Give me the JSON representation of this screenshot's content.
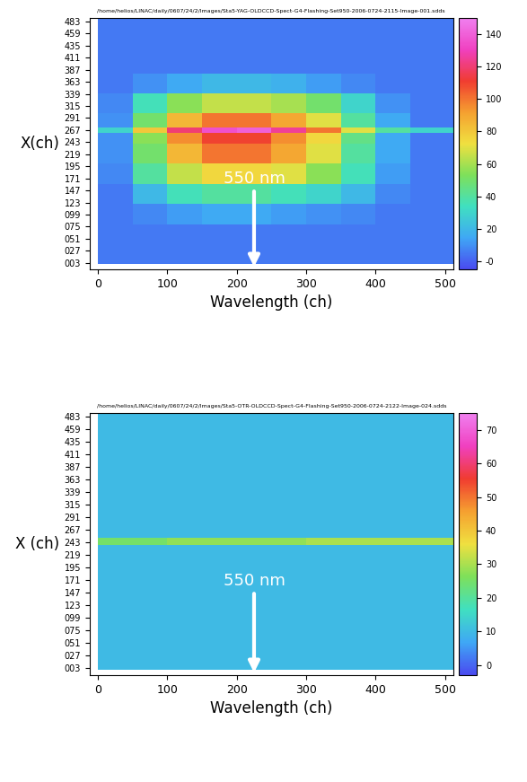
{
  "chart_data": [
    {
      "type": "heatmap",
      "title": "/home/helios/LINAC/daily/0607/24/2/Images/Sta5-YAG-OLDCCD-Spect-G4-Flashing-Set950-2006-0724-2115-Image-001.sdds",
      "x_label": "Wavelength (ch)",
      "y_label": "X(ch)",
      "x_edges": [
        0,
        50,
        100,
        150,
        200,
        250,
        300,
        350,
        400,
        450,
        512
      ],
      "y_edges": [
        0,
        40,
        80,
        120,
        160,
        200,
        240,
        262,
        272,
        300,
        340,
        380,
        490
      ],
      "cells": [
        [
          5,
          5,
          5,
          5,
          5,
          5,
          5,
          5,
          5,
          5
        ],
        [
          5,
          5,
          5,
          5,
          5,
          5,
          5,
          5,
          5,
          5
        ],
        [
          5,
          8,
          12,
          15,
          15,
          12,
          10,
          8,
          5,
          5
        ],
        [
          5,
          20,
          35,
          40,
          40,
          35,
          30,
          20,
          8,
          5
        ],
        [
          8,
          40,
          65,
          75,
          75,
          70,
          55,
          35,
          12,
          5
        ],
        [
          10,
          50,
          85,
          100,
          100,
          90,
          70,
          40,
          15,
          5
        ],
        [
          10,
          55,
          95,
          110,
          110,
          95,
          75,
          45,
          15,
          5
        ],
        [
          30,
          80,
          120,
          135,
          140,
          125,
          100,
          70,
          40,
          30
        ],
        [
          10,
          50,
          85,
          100,
          100,
          90,
          70,
          40,
          15,
          5
        ],
        [
          8,
          35,
          55,
          65,
          65,
          60,
          50,
          30,
          10,
          5
        ],
        [
          5,
          10,
          15,
          20,
          20,
          18,
          12,
          8,
          5,
          5
        ],
        [
          5,
          5,
          5,
          5,
          5,
          5,
          5,
          5,
          5,
          5
        ]
      ],
      "xlim": [
        -12,
        512
      ],
      "ylim": [
        -10,
        490
      ],
      "xticks": [
        0,
        100,
        200,
        300,
        400,
        500
      ],
      "yticks": [
        {
          "value": 3,
          "label": "003"
        },
        {
          "value": 27,
          "label": "027"
        },
        {
          "value": 51,
          "label": "051"
        },
        {
          "value": 75,
          "label": "075"
        },
        {
          "value": 99,
          "label": "099"
        },
        123,
        147,
        171,
        195,
        219,
        243,
        267,
        291,
        315,
        339,
        363,
        387,
        411,
        435,
        459,
        483
      ],
      "colorbar_lim": [
        -5,
        150
      ],
      "colorbar_ticks": [
        {
          "value": 0,
          "label": "-0"
        },
        20,
        40,
        60,
        80,
        100,
        120,
        140
      ],
      "annotation": {
        "text": "550 nm",
        "x": 225
      }
    },
    {
      "type": "heatmap",
      "title": "/home/helios/LINAC/daily/0607/24/2/Images/Sta5-OTR-OLDCCD-Spect-G4-Flashing-Set950-2006-0724-2122-Image-024.sdds",
      "x_label": "Wavelength (ch)",
      "y_label": "X (ch)",
      "x_edges": [
        0,
        50,
        100,
        150,
        200,
        250,
        300,
        350,
        400,
        450,
        512
      ],
      "y_edges": [
        0,
        60,
        120,
        180,
        238,
        252,
        310,
        370,
        430,
        490
      ],
      "cells": [
        [
          10,
          10,
          10,
          10,
          10,
          10,
          10,
          10,
          10,
          10
        ],
        [
          10,
          10,
          10,
          10,
          10,
          10,
          10,
          10,
          10,
          10
        ],
        [
          10,
          10,
          10,
          10,
          10,
          10,
          10,
          10,
          10,
          10
        ],
        [
          10,
          10,
          10,
          10,
          10,
          10,
          10,
          10,
          10,
          10
        ],
        [
          25,
          25,
          28,
          28,
          28,
          28,
          30,
          30,
          30,
          30
        ],
        [
          10,
          10,
          10,
          10,
          10,
          10,
          10,
          10,
          10,
          10
        ],
        [
          10,
          10,
          10,
          10,
          10,
          10,
          10,
          10,
          10,
          10
        ],
        [
          10,
          10,
          10,
          10,
          10,
          10,
          10,
          10,
          10,
          10
        ],
        [
          10,
          10,
          10,
          10,
          10,
          10,
          10,
          10,
          10,
          10
        ]
      ],
      "xlim": [
        -12,
        512
      ],
      "ylim": [
        -10,
        490
      ],
      "xticks": [
        0,
        100,
        200,
        300,
        400,
        500
      ],
      "yticks": [
        {
          "value": 3,
          "label": "003"
        },
        {
          "value": 27,
          "label": "027"
        },
        {
          "value": 51,
          "label": "051"
        },
        {
          "value": 75,
          "label": "075"
        },
        {
          "value": 99,
          "label": "099"
        },
        123,
        147,
        171,
        195,
        219,
        243,
        267,
        291,
        315,
        339,
        363,
        387,
        411,
        435,
        459,
        483
      ],
      "colorbar_lim": [
        -3,
        75
      ],
      "colorbar_ticks": [
        0,
        10,
        20,
        30,
        40,
        50,
        60,
        70
      ],
      "annotation": {
        "text": "550 nm",
        "x": 225
      }
    }
  ]
}
